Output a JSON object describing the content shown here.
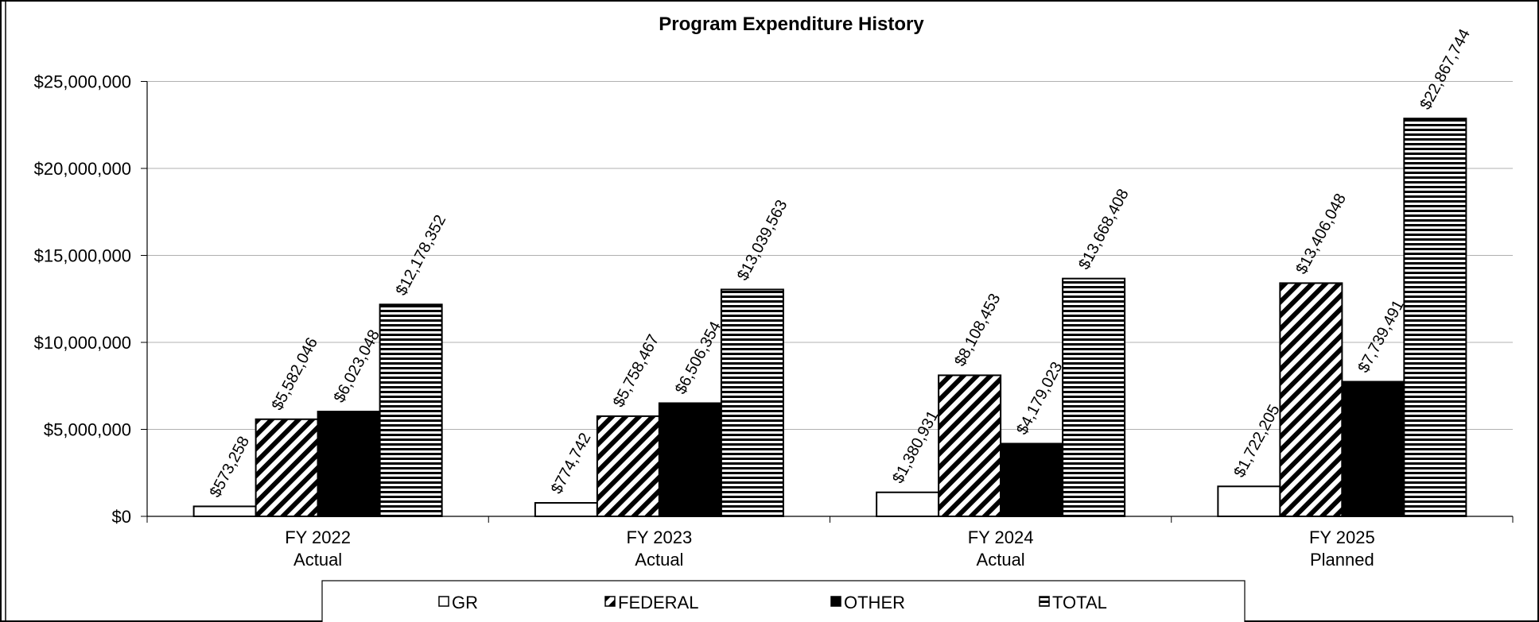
{
  "chart_data": {
    "type": "bar",
    "title": "Program Expenditure History",
    "categories": [
      [
        "FY 2022",
        "Actual"
      ],
      [
        "FY 2023",
        "Actual"
      ],
      [
        "FY 2024",
        "Actual"
      ],
      [
        "FY 2025",
        "Planned"
      ]
    ],
    "series": [
      {
        "name": "GR",
        "color": "#ffffff",
        "pattern": "solid",
        "values": [
          573258,
          774742,
          1380931,
          1722205
        ],
        "value_labels": [
          "$573,258",
          "$774,742",
          "$1,380,931",
          "$1,722,205"
        ]
      },
      {
        "name": "FEDERAL",
        "color": "#000000",
        "pattern": "diagonal",
        "values": [
          5582046,
          5758467,
          8108453,
          13406048
        ],
        "value_labels": [
          "$5,582,046",
          "$5,758,467",
          "$8,108,453",
          "$13,406,048"
        ]
      },
      {
        "name": "OTHER",
        "color": "#000000",
        "pattern": "solid",
        "values": [
          6023048,
          6506354,
          4179023,
          7739491
        ],
        "value_labels": [
          "$6,023,048",
          "$6,506,354",
          "$4,179,023",
          "$7,739,491"
        ]
      },
      {
        "name": "TOTAL",
        "color": "#000000",
        "pattern": "horizontal",
        "values": [
          12178352,
          13039563,
          13668408,
          22867744
        ],
        "value_labels": [
          "$12,178,352",
          "$13,039,563",
          "$13,668,408",
          "$22,867,744"
        ]
      }
    ],
    "ylim": [
      0,
      25000000
    ],
    "yticks": [
      {
        "value": 0,
        "label": "$0"
      },
      {
        "value": 5000000,
        "label": "$5,000,000"
      },
      {
        "value": 10000000,
        "label": "$10,000,000"
      },
      {
        "value": 15000000,
        "label": "$15,000,000"
      },
      {
        "value": 20000000,
        "label": "$20,000,000"
      },
      {
        "value": 25000000,
        "label": "$25,000,000"
      }
    ],
    "grid": true,
    "legend": "bottom"
  }
}
